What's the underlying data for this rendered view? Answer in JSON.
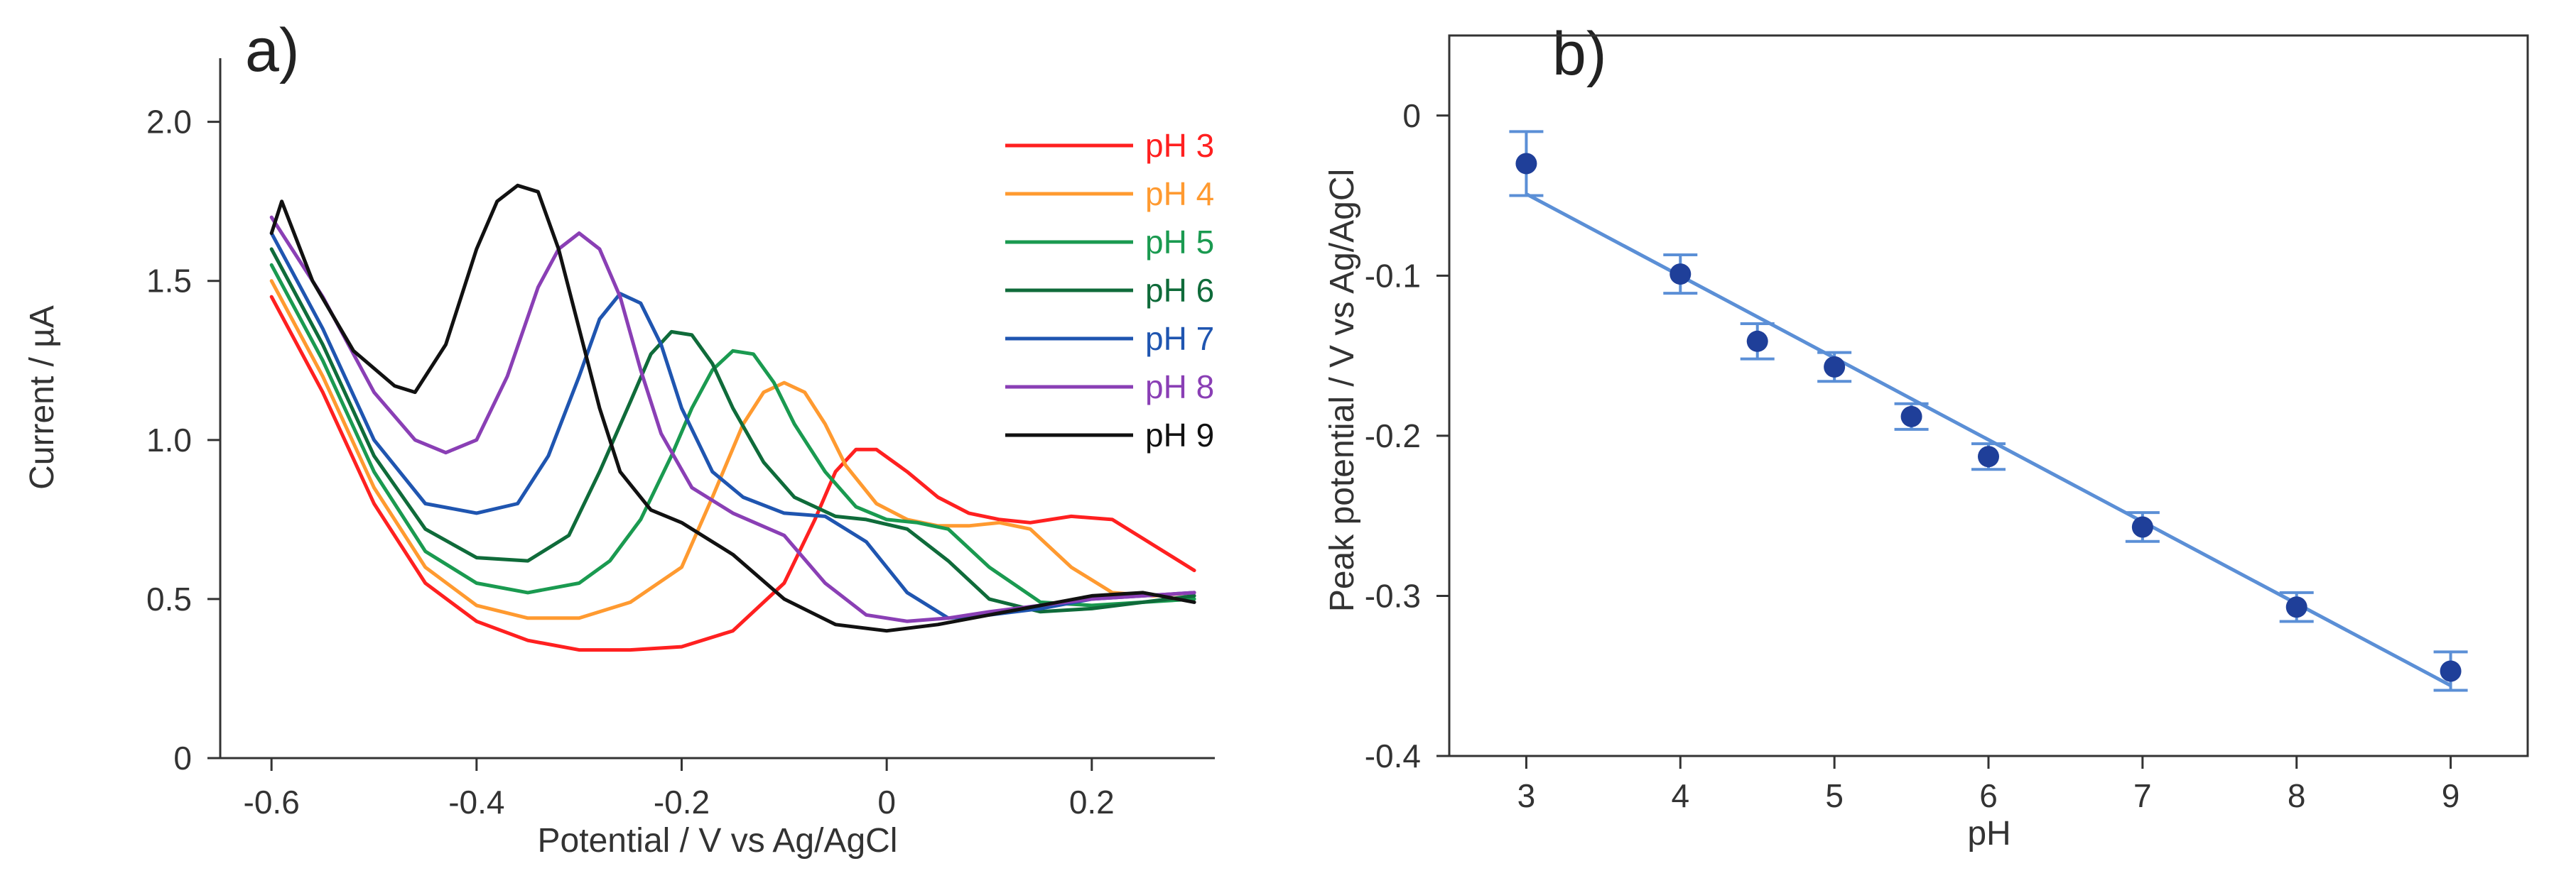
{
  "figure": {
    "panel_a_label": "a)",
    "panel_b_label": "b)"
  },
  "chart_data": [
    {
      "type": "line",
      "panel": "a)",
      "title": "",
      "xlabel": "Potential / V vs Ag/AgCl",
      "ylabel": "Current / µA",
      "xlim": [
        -0.65,
        0.32
      ],
      "ylim": [
        0,
        2.2
      ],
      "xticks": [
        -0.6,
        -0.4,
        -0.2,
        0,
        0.2
      ],
      "xtick_labels": [
        "-0.6",
        "-0.4",
        "-0.2",
        "0",
        "0.2"
      ],
      "yticks": [
        0,
        0.5,
        1.0,
        1.5,
        2.0
      ],
      "ytick_labels": [
        "0",
        "0.5",
        "1.0",
        "1.5",
        "2.0"
      ],
      "grid": false,
      "legend_position": "top-right",
      "series": [
        {
          "name": "pH 3",
          "color": "#ff2020",
          "x": [
            -0.6,
            -0.55,
            -0.5,
            -0.45,
            -0.4,
            -0.35,
            -0.3,
            -0.25,
            -0.2,
            -0.15,
            -0.1,
            -0.07,
            -0.05,
            -0.03,
            -0.01,
            0.02,
            0.05,
            0.08,
            0.11,
            0.14,
            0.18,
            0.22,
            0.26,
            0.3
          ],
          "y": [
            1.45,
            1.15,
            0.8,
            0.55,
            0.43,
            0.37,
            0.34,
            0.34,
            0.35,
            0.4,
            0.55,
            0.75,
            0.9,
            0.97,
            0.97,
            0.9,
            0.82,
            0.77,
            0.75,
            0.74,
            0.76,
            0.75,
            0.67,
            0.59
          ]
        },
        {
          "name": "pH 4",
          "color": "#ff9a30",
          "x": [
            -0.6,
            -0.55,
            -0.5,
            -0.45,
            -0.4,
            -0.35,
            -0.3,
            -0.25,
            -0.2,
            -0.17,
            -0.14,
            -0.12,
            -0.1,
            -0.08,
            -0.06,
            -0.04,
            -0.01,
            0.02,
            0.05,
            0.08,
            0.11,
            0.14,
            0.18,
            0.22,
            0.26,
            0.3
          ],
          "y": [
            1.5,
            1.2,
            0.85,
            0.6,
            0.48,
            0.44,
            0.44,
            0.49,
            0.6,
            0.82,
            1.05,
            1.15,
            1.18,
            1.15,
            1.05,
            0.92,
            0.8,
            0.75,
            0.73,
            0.73,
            0.74,
            0.72,
            0.6,
            0.52,
            0.51,
            0.52
          ]
        },
        {
          "name": "pH 5",
          "color": "#1a9a50",
          "x": [
            -0.6,
            -0.55,
            -0.5,
            -0.45,
            -0.4,
            -0.35,
            -0.3,
            -0.27,
            -0.24,
            -0.21,
            -0.19,
            -0.17,
            -0.15,
            -0.13,
            -0.11,
            -0.09,
            -0.06,
            -0.03,
            0.0,
            0.03,
            0.06,
            0.1,
            0.15,
            0.2,
            0.25,
            0.3
          ],
          "y": [
            1.55,
            1.25,
            0.9,
            0.65,
            0.55,
            0.52,
            0.55,
            0.62,
            0.75,
            0.95,
            1.1,
            1.22,
            1.28,
            1.27,
            1.18,
            1.05,
            0.9,
            0.79,
            0.75,
            0.74,
            0.72,
            0.6,
            0.49,
            0.48,
            0.49,
            0.5
          ]
        },
        {
          "name": "pH 6",
          "color": "#0f6b3a",
          "x": [
            -0.6,
            -0.55,
            -0.5,
            -0.45,
            -0.4,
            -0.35,
            -0.31,
            -0.28,
            -0.25,
            -0.23,
            -0.21,
            -0.19,
            -0.17,
            -0.15,
            -0.12,
            -0.09,
            -0.05,
            -0.02,
            0.02,
            0.06,
            0.1,
            0.15,
            0.2,
            0.25,
            0.3
          ],
          "y": [
            1.6,
            1.3,
            0.95,
            0.72,
            0.63,
            0.62,
            0.7,
            0.9,
            1.12,
            1.27,
            1.34,
            1.33,
            1.24,
            1.1,
            0.93,
            0.82,
            0.76,
            0.75,
            0.72,
            0.62,
            0.5,
            0.46,
            0.47,
            0.49,
            0.51
          ]
        },
        {
          "name": "pH 7",
          "color": "#1f55b0",
          "x": [
            -0.6,
            -0.55,
            -0.5,
            -0.45,
            -0.4,
            -0.36,
            -0.33,
            -0.3,
            -0.28,
            -0.26,
            -0.24,
            -0.22,
            -0.2,
            -0.17,
            -0.14,
            -0.1,
            -0.06,
            -0.02,
            0.02,
            0.06,
            0.1,
            0.15,
            0.2,
            0.25,
            0.3
          ],
          "y": [
            1.65,
            1.35,
            1.0,
            0.8,
            0.77,
            0.8,
            0.95,
            1.2,
            1.38,
            1.46,
            1.43,
            1.3,
            1.1,
            0.9,
            0.82,
            0.77,
            0.76,
            0.68,
            0.52,
            0.44,
            0.45,
            0.47,
            0.5,
            0.51,
            0.52
          ]
        },
        {
          "name": "pH 8",
          "color": "#8a3fb5",
          "x": [
            -0.6,
            -0.55,
            -0.5,
            -0.46,
            -0.43,
            -0.4,
            -0.37,
            -0.34,
            -0.32,
            -0.3,
            -0.28,
            -0.26,
            -0.24,
            -0.22,
            -0.19,
            -0.15,
            -0.1,
            -0.06,
            -0.02,
            0.02,
            0.06,
            0.1,
            0.15,
            0.2,
            0.25,
            0.3
          ],
          "y": [
            1.7,
            1.45,
            1.15,
            1.0,
            0.96,
            1.0,
            1.2,
            1.48,
            1.6,
            1.65,
            1.6,
            1.45,
            1.22,
            1.02,
            0.85,
            0.77,
            0.7,
            0.55,
            0.45,
            0.43,
            0.44,
            0.46,
            0.48,
            0.5,
            0.51,
            0.52
          ]
        },
        {
          "name": "pH 9",
          "color": "#111111",
          "x": [
            -0.6,
            -0.59,
            -0.56,
            -0.52,
            -0.48,
            -0.46,
            -0.43,
            -0.4,
            -0.38,
            -0.36,
            -0.34,
            -0.32,
            -0.3,
            -0.28,
            -0.26,
            -0.23,
            -0.2,
            -0.15,
            -0.1,
            -0.05,
            0.0,
            0.05,
            0.1,
            0.15,
            0.2,
            0.25,
            0.3
          ],
          "y": [
            1.65,
            1.75,
            1.5,
            1.28,
            1.17,
            1.15,
            1.3,
            1.6,
            1.75,
            1.8,
            1.78,
            1.6,
            1.35,
            1.1,
            0.9,
            0.78,
            0.74,
            0.64,
            0.5,
            0.42,
            0.4,
            0.42,
            0.45,
            0.48,
            0.51,
            0.52,
            0.49
          ]
        }
      ]
    },
    {
      "type": "scatter",
      "panel": "b)",
      "title": "",
      "xlabel": "pH",
      "ylabel": "Peak potential / V vs Ag/AgCl",
      "xlim": [
        2.5,
        9.5
      ],
      "ylim": [
        -0.4,
        0.05
      ],
      "xticks": [
        3,
        4,
        5,
        6,
        7,
        8,
        9
      ],
      "xtick_labels": [
        "3",
        "4",
        "5",
        "6",
        "7",
        "8",
        "9"
      ],
      "yticks": [
        0,
        -0.1,
        -0.2,
        -0.3,
        -0.4
      ],
      "ytick_labels": [
        "0",
        "-0.1",
        "-0.2",
        "-0.3",
        "-0.4"
      ],
      "grid": false,
      "point_color": "#1f3f99",
      "fit_color": "#5b8fd6",
      "points": {
        "x": [
          3,
          4,
          4.5,
          5,
          5.5,
          6,
          7,
          8,
          9
        ],
        "y": [
          -0.03,
          -0.099,
          -0.141,
          -0.157,
          -0.188,
          -0.213,
          -0.257,
          -0.307,
          -0.347
        ],
        "yerr": [
          0.02,
          0.012,
          0.011,
          0.009,
          0.008,
          0.008,
          0.009,
          0.009,
          0.012
        ]
      },
      "fit_line": {
        "x": [
          3,
          9
        ],
        "y": [
          -0.049,
          -0.356
        ]
      }
    }
  ]
}
